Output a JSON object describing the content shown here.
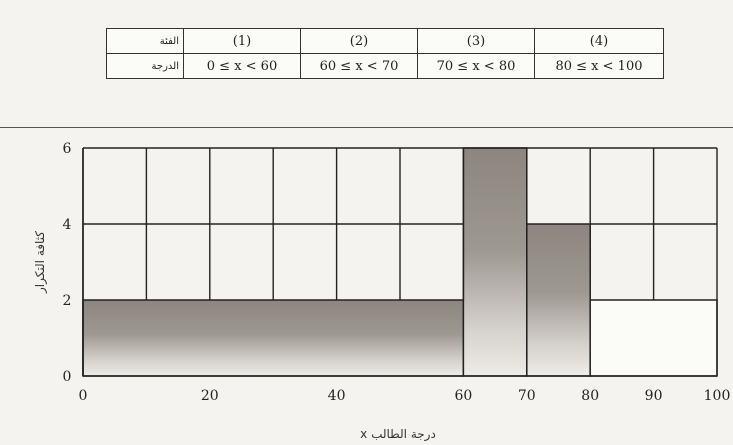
{
  "table": {
    "header_label": "الفئة",
    "row_label": "الدرجة",
    "classes": [
      "(1)",
      "(2)",
      "(3)",
      "(4)"
    ],
    "ranges": [
      "0 ≤ x < 60",
      "60 ≤ x < 70",
      "70 ≤ x < 80",
      "80 ≤ x < 100"
    ]
  },
  "chart_data": {
    "type": "bar",
    "title": "",
    "xlabel": "درجة الطالب x",
    "ylabel": "كثافة التكرار",
    "xlim": [
      0,
      100
    ],
    "ylim": [
      0,
      6
    ],
    "x_ticks": [
      0,
      20,
      40,
      60,
      70,
      80,
      90,
      100
    ],
    "y_ticks": [
      0,
      2,
      4,
      6
    ],
    "grid": true,
    "bins": [
      {
        "from": 0,
        "to": 60,
        "value": 2,
        "shaded": true
      },
      {
        "from": 60,
        "to": 70,
        "value": 6,
        "shaded": true
      },
      {
        "from": 70,
        "to": 80,
        "value": 4,
        "shaded": true
      },
      {
        "from": 80,
        "to": 100,
        "value": 2,
        "shaded": false
      }
    ],
    "colors": {
      "bar_shade": "#8c8580",
      "grid": "#222222"
    }
  }
}
